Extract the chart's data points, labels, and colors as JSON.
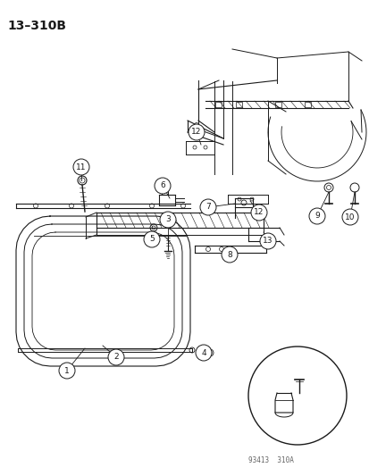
{
  "title": "13–310B",
  "watermark": "93413  310A",
  "bg": "#ffffff",
  "lc": "#1a1a1a",
  "figsize": [
    4.14,
    5.33
  ],
  "dpi": 100
}
